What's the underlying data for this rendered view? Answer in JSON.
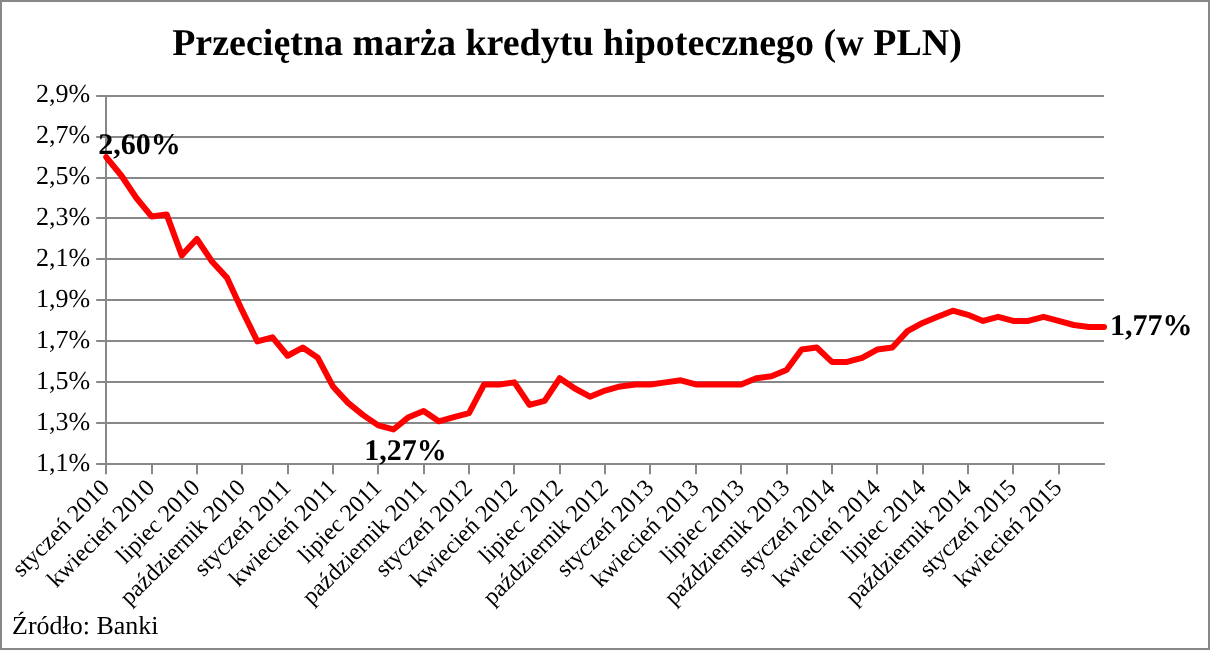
{
  "chart_data": {
    "type": "line",
    "title": "Przeciętna marża kredytu hipotecznego (w PLN)",
    "categories": [
      "styczeń 2010",
      null,
      null,
      "kwiecień 2010",
      null,
      null,
      "lipiec 2010",
      null,
      null,
      "październik 2010",
      null,
      null,
      "styczeń 2011",
      null,
      null,
      "kwiecień 2011",
      null,
      null,
      "lipiec 2011",
      null,
      null,
      "październik 2011",
      null,
      null,
      "styczeń 2012",
      null,
      null,
      "kwiecień 2012",
      null,
      null,
      "lipiec 2012",
      null,
      null,
      "październik 2012",
      null,
      null,
      "styczeń 2013",
      null,
      null,
      "kwiecień 2013",
      null,
      null,
      "lipiec 2013",
      null,
      null,
      "październik 2013",
      null,
      null,
      "styczeń 2014",
      null,
      null,
      "kwiecień 2014",
      null,
      null,
      "lipiec 2014",
      null,
      null,
      "październik 2014",
      null,
      null,
      "styczeń 2015",
      null,
      null,
      "kwiecień 2015",
      null,
      null,
      null
    ],
    "series": [
      {
        "color": "#ff0000",
        "values": [
          2.6,
          2.51,
          2.4,
          2.31,
          2.32,
          2.12,
          2.2,
          2.09,
          2.01,
          1.85,
          1.7,
          1.72,
          1.63,
          1.67,
          1.62,
          1.48,
          1.4,
          1.34,
          1.29,
          1.27,
          1.33,
          1.36,
          1.31,
          1.33,
          1.35,
          1.49,
          1.49,
          1.5,
          1.39,
          1.41,
          1.52,
          1.47,
          1.43,
          1.46,
          1.48,
          1.49,
          1.49,
          1.5,
          1.51,
          1.49,
          1.49,
          1.49,
          1.49,
          1.52,
          1.53,
          1.56,
          1.66,
          1.67,
          1.6,
          1.6,
          1.62,
          1.66,
          1.67,
          1.75,
          1.79,
          1.82,
          1.85,
          1.83,
          1.8,
          1.82,
          1.8,
          1.8,
          1.82,
          1.8,
          1.78,
          1.77,
          1.77
        ],
        "value_labels": [
          "2,60%",
          null,
          null,
          null,
          null,
          null,
          null,
          null,
          null,
          null,
          null,
          null,
          null,
          null,
          null,
          null,
          null,
          null,
          null,
          "1,27%",
          null,
          null,
          null,
          null,
          null,
          null,
          null,
          null,
          null,
          null,
          null,
          null,
          null,
          null,
          null,
          null,
          null,
          null,
          null,
          null,
          null,
          null,
          null,
          null,
          null,
          null,
          null,
          null,
          null,
          null,
          null,
          null,
          null,
          null,
          null,
          null,
          null,
          null,
          null,
          null,
          null,
          null,
          null,
          null,
          null,
          null,
          "1,77%"
        ]
      }
    ],
    "ylim": [
      1.1,
      2.9
    ],
    "yticks": [
      {
        "value": 1.1,
        "label": "1,1%"
      },
      {
        "value": 1.3,
        "label": "1,3%"
      },
      {
        "value": 1.5,
        "label": "1,5%"
      },
      {
        "value": 1.7,
        "label": "1,7%"
      },
      {
        "value": 1.9,
        "label": "1,9%"
      },
      {
        "value": 2.1,
        "label": "2,1%"
      },
      {
        "value": 2.3,
        "label": "2,3%"
      },
      {
        "value": 2.5,
        "label": "2,5%"
      },
      {
        "value": 2.7,
        "label": "2,7%"
      },
      {
        "value": 2.9,
        "label": "2,9%"
      }
    ],
    "grid": "y",
    "legend": false,
    "marker": "none",
    "line_style": "solid",
    "annotations": [
      "Źródło: Banki"
    ]
  }
}
